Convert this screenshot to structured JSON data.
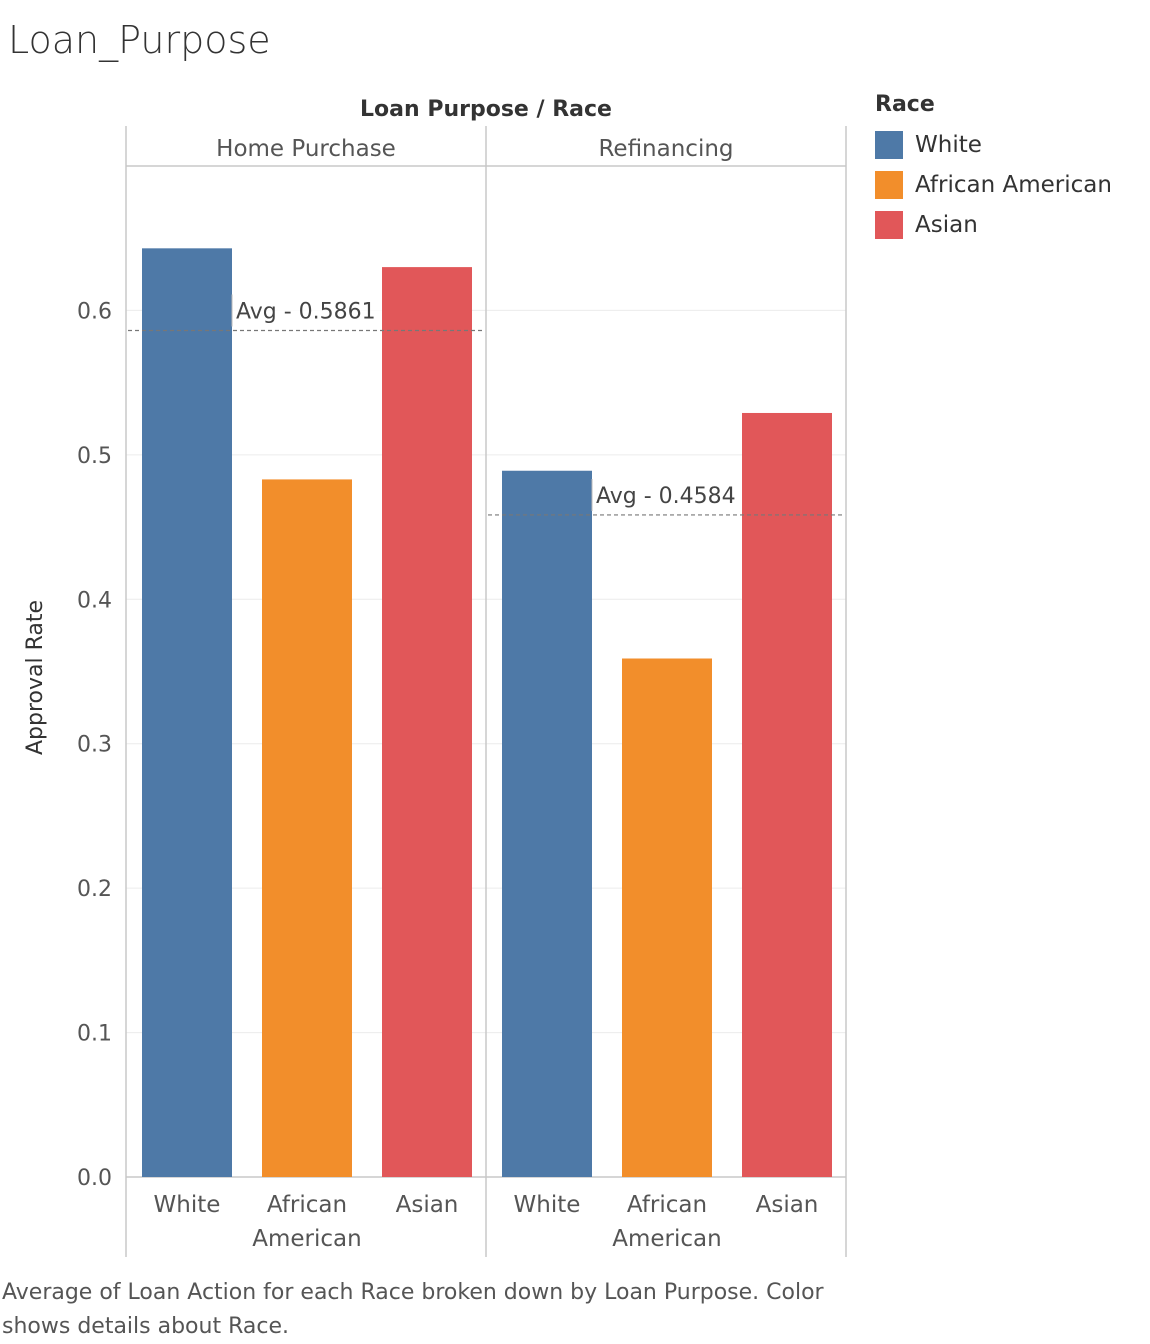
{
  "title": "Loan_Purpose",
  "caption": "Average of Loan Action for each Race broken down by Loan Purpose.  Color shows details about Race.",
  "legend": {
    "title": "Race",
    "items": [
      {
        "label": "White",
        "color": "#4e79a7"
      },
      {
        "label": "African American",
        "color": "#f28e2b"
      },
      {
        "label": "Asian",
        "color": "#e15759"
      }
    ]
  },
  "chart_data": {
    "type": "bar",
    "header": "Loan Purpose  /  Race",
    "ylabel": "Approval Rate",
    "ylim": [
      0,
      0.7
    ],
    "yticks": [
      "0.0",
      "0.1",
      "0.2",
      "0.3",
      "0.4",
      "0.5",
      "0.6"
    ],
    "grid": true,
    "legend_position": "right",
    "panels": [
      {
        "name": "Home Purchase",
        "categories": [
          "White",
          "African American",
          "Asian"
        ],
        "values": [
          0.643,
          0.483,
          0.63
        ],
        "average": 0.5861,
        "average_label": "Avg - 0.5861"
      },
      {
        "name": "Refinancing",
        "categories": [
          "White",
          "African American",
          "Asian"
        ],
        "values": [
          0.489,
          0.359,
          0.529
        ],
        "average": 0.4584,
        "average_label": "Avg - 0.4584"
      }
    ]
  }
}
